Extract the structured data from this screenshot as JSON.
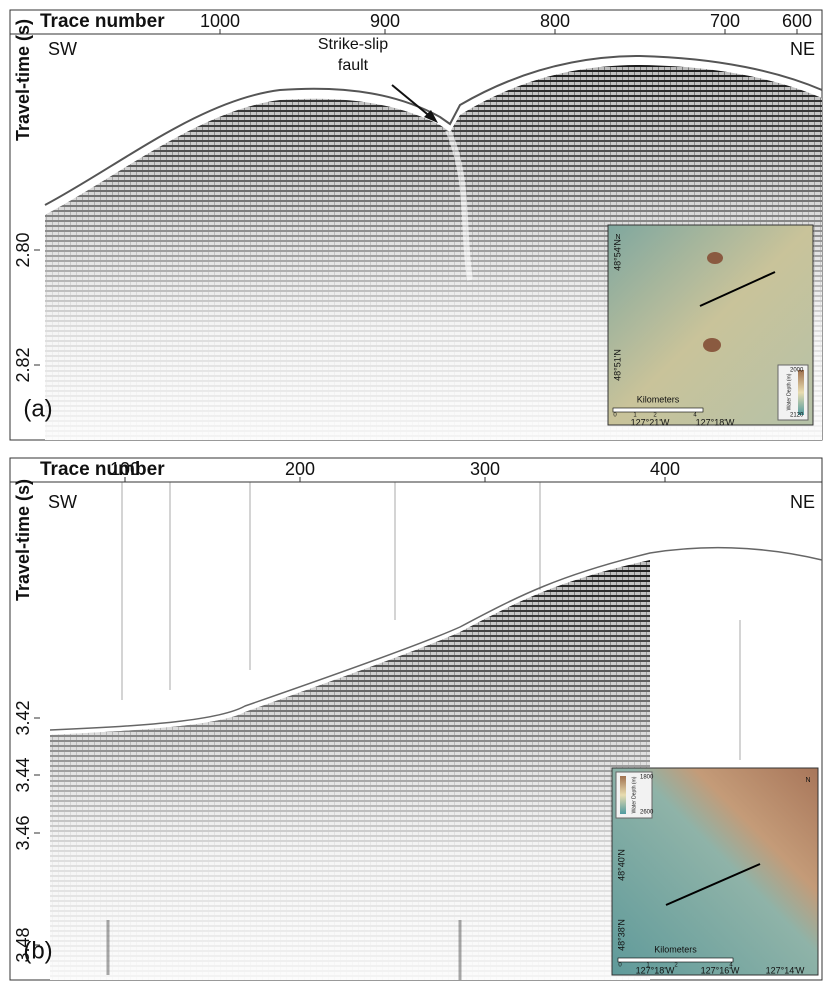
{
  "panels": [
    {
      "label": "(a)",
      "x_axis_title": "Trace number",
      "x_ticks": [
        "1000",
        "900",
        "800",
        "700",
        "600"
      ],
      "y_axis_title": "Travel-time (s)",
      "y_ticks": [
        "2.80",
        "2.82"
      ],
      "left_direction": "SW",
      "right_direction": "NE",
      "annotation": [
        "Strike-slip",
        "fault"
      ],
      "inset": {
        "north": "N",
        "lat_labels": [
          "48°54'N",
          "48°51'N"
        ],
        "lon_labels": [
          "127°21'W",
          "127°18'W"
        ],
        "scale_title": "Kilometers",
        "scale_ticks": [
          "0",
          "1",
          "2",
          "4"
        ],
        "legend_title": "Water Depth (m)",
        "legend_top": "2000",
        "legend_bottom": "2120"
      }
    },
    {
      "label": "(b)",
      "x_axis_title": "Trace number",
      "x_ticks": [
        "100",
        "200",
        "300",
        "400"
      ],
      "y_axis_title": "Travel-time (s)",
      "y_ticks": [
        "3.42",
        "3.44",
        "3.46",
        "3.48"
      ],
      "left_direction": "SW",
      "right_direction": "NE",
      "inset": {
        "north": "N",
        "lat_labels": [
          "48°40'N",
          "48°38'N"
        ],
        "lon_labels": [
          "127°18'W",
          "127°16'W",
          "127°14'W"
        ],
        "scale_title": "Kilometers",
        "scale_ticks": [
          "0",
          "1",
          "2",
          "4"
        ],
        "legend_title": "Water Depth (m)",
        "legend_top": "1800",
        "legend_bottom": "2600"
      }
    }
  ]
}
